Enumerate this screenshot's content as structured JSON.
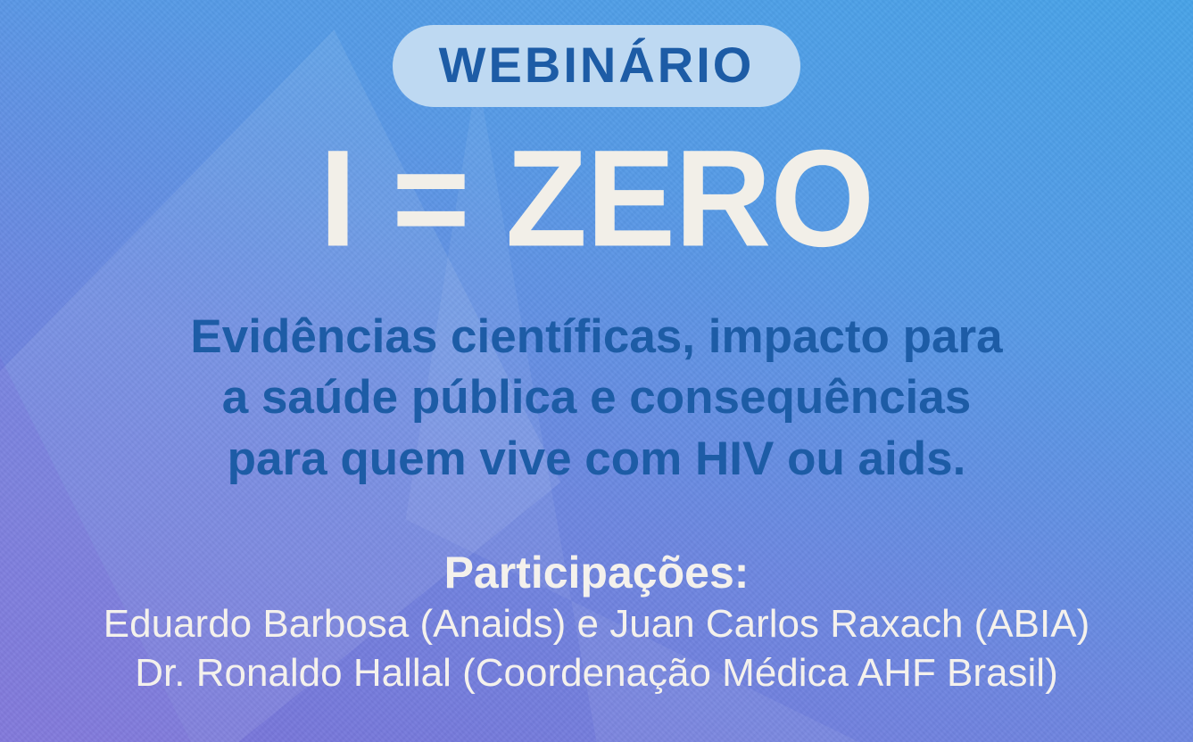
{
  "poster": {
    "badge": "WEBINÁRIO",
    "title": "I = ZERO",
    "subtitle_lines": [
      "Evidências científicas, impacto para",
      "a saúde pública e consequências",
      "para quem vive com HIV ou aids."
    ],
    "participations_heading": "Participações:",
    "participants": [
      "Eduardo Barbosa (Anaids) e Juan Carlos Raxach (ABIA)",
      "Dr. Ronaldo Hallal (Coordenação Médica AHF Brasil)"
    ],
    "colors": {
      "background_top": "#47a3e8",
      "background_bottom": "#7b72d8",
      "badge_background": "#bed9f2",
      "badge_text": "#1d5ca6",
      "title_text": "#f2efe8",
      "subtitle_text": "#1d5ca6",
      "participants_text": "#f4f1ec"
    }
  }
}
